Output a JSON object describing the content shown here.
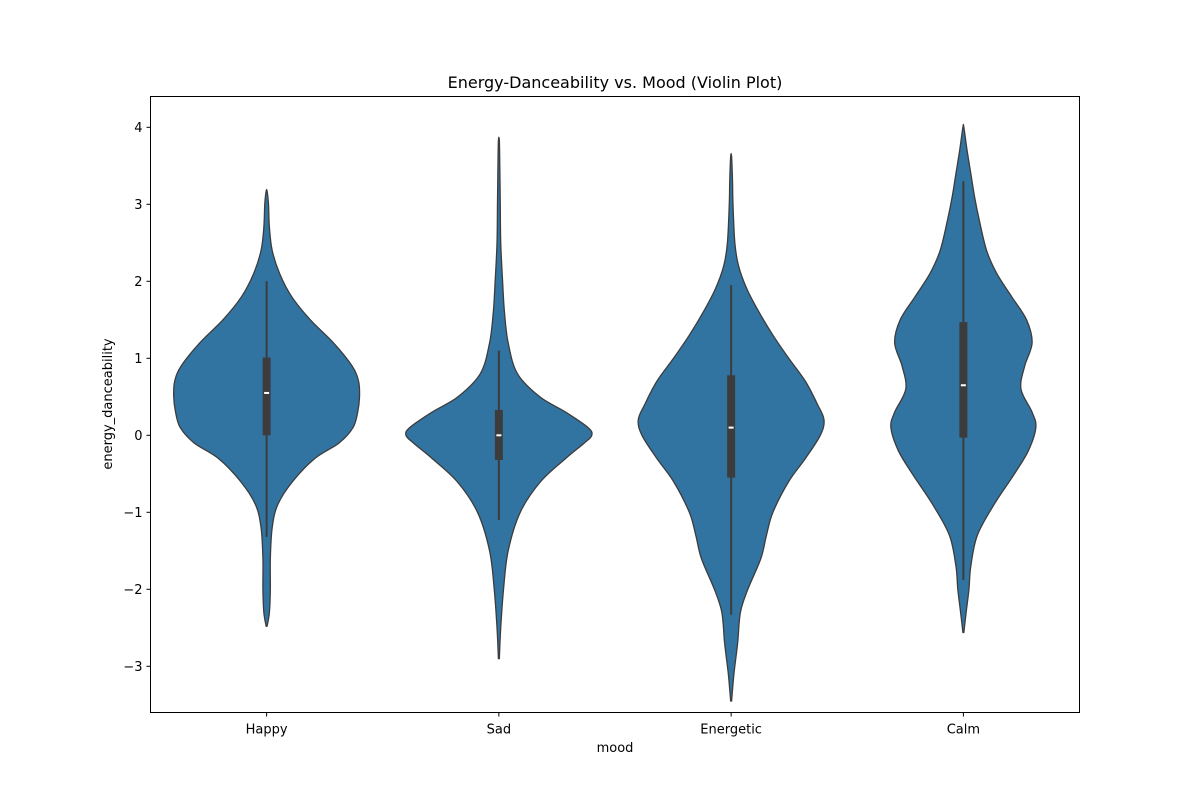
{
  "chart_data": {
    "type": "violin",
    "title": "Energy-Danceability vs. Mood (Violin Plot)",
    "xlabel": "mood",
    "ylabel": "energy_danceability",
    "ylim": [
      -3.6,
      4.4
    ],
    "yticks": [
      4,
      3,
      2,
      1,
      0,
      -1,
      -2,
      -3
    ],
    "ytick_labels": [
      "4",
      "3",
      "2",
      "1",
      "0",
      "−1",
      "−2",
      "−3"
    ],
    "categories": [
      "Happy",
      "Sad",
      "Energetic",
      "Calm"
    ],
    "grid": false,
    "legend": "none",
    "violin_color": "#3274a1",
    "outline_color": "#3c3c3c",
    "box_color": "#3c3c3c",
    "median_color": "#ffffff",
    "violins": [
      {
        "category": "Happy",
        "min": -2.48,
        "max": 3.17,
        "q1": 0.0,
        "median": 0.55,
        "q3": 1.01,
        "whisker_low": -1.32,
        "whisker_high": 2.0,
        "density": [
          [
            -2.48,
            0.005
          ],
          [
            -2.3,
            0.03
          ],
          [
            -2.0,
            0.04
          ],
          [
            -1.6,
            0.04
          ],
          [
            -1.2,
            0.06
          ],
          [
            -0.9,
            0.12
          ],
          [
            -0.6,
            0.28
          ],
          [
            -0.3,
            0.52
          ],
          [
            -0.1,
            0.78
          ],
          [
            0.1,
            0.93
          ],
          [
            0.3,
            0.98
          ],
          [
            0.5,
            1.0
          ],
          [
            0.7,
            0.99
          ],
          [
            0.9,
            0.92
          ],
          [
            1.2,
            0.72
          ],
          [
            1.5,
            0.47
          ],
          [
            1.8,
            0.27
          ],
          [
            2.1,
            0.14
          ],
          [
            2.4,
            0.06
          ],
          [
            2.7,
            0.03
          ],
          [
            3.0,
            0.02
          ],
          [
            3.17,
            0.005
          ]
        ]
      },
      {
        "category": "Sad",
        "min": -2.9,
        "max": 3.83,
        "q1": -0.32,
        "median": 0.0,
        "q3": 0.33,
        "whisker_low": -1.1,
        "whisker_high": 1.1,
        "density": [
          [
            -2.9,
            0.005
          ],
          [
            -2.5,
            0.02
          ],
          [
            -2.0,
            0.05
          ],
          [
            -1.5,
            0.1
          ],
          [
            -1.0,
            0.23
          ],
          [
            -0.6,
            0.45
          ],
          [
            -0.3,
            0.72
          ],
          [
            -0.1,
            0.92
          ],
          [
            0.0,
            1.0
          ],
          [
            0.1,
            0.96
          ],
          [
            0.3,
            0.72
          ],
          [
            0.5,
            0.44
          ],
          [
            0.8,
            0.2
          ],
          [
            1.2,
            0.1
          ],
          [
            1.6,
            0.06
          ],
          [
            2.0,
            0.04
          ],
          [
            2.5,
            0.02
          ],
          [
            3.0,
            0.015
          ],
          [
            3.5,
            0.01
          ],
          [
            3.83,
            0.005
          ]
        ]
      },
      {
        "category": "Energetic",
        "min": -3.45,
        "max": 3.62,
        "q1": -0.55,
        "median": 0.1,
        "q3": 0.78,
        "whisker_low": -2.33,
        "whisker_high": 1.95,
        "density": [
          [
            -3.45,
            0.005
          ],
          [
            -3.1,
            0.03
          ],
          [
            -2.7,
            0.07
          ],
          [
            -2.3,
            0.1
          ],
          [
            -2.0,
            0.18
          ],
          [
            -1.6,
            0.32
          ],
          [
            -1.3,
            0.38
          ],
          [
            -1.0,
            0.45
          ],
          [
            -0.6,
            0.62
          ],
          [
            -0.3,
            0.8
          ],
          [
            0.0,
            0.96
          ],
          [
            0.2,
            1.0
          ],
          [
            0.4,
            0.93
          ],
          [
            0.7,
            0.8
          ],
          [
            1.0,
            0.62
          ],
          [
            1.3,
            0.45
          ],
          [
            1.6,
            0.3
          ],
          [
            1.9,
            0.17
          ],
          [
            2.2,
            0.08
          ],
          [
            2.5,
            0.04
          ],
          [
            3.0,
            0.02
          ],
          [
            3.3,
            0.015
          ],
          [
            3.62,
            0.005
          ]
        ]
      },
      {
        "category": "Calm",
        "min": -2.56,
        "max": 4.0,
        "q1": -0.03,
        "median": 0.65,
        "q3": 1.47,
        "whisker_low": -1.88,
        "whisker_high": 3.3,
        "density": [
          [
            -2.56,
            0.005
          ],
          [
            -2.3,
            0.03
          ],
          [
            -2.0,
            0.06
          ],
          [
            -1.7,
            0.08
          ],
          [
            -1.3,
            0.15
          ],
          [
            -0.9,
            0.33
          ],
          [
            -0.5,
            0.55
          ],
          [
            -0.2,
            0.7
          ],
          [
            0.1,
            0.78
          ],
          [
            0.3,
            0.74
          ],
          [
            0.6,
            0.62
          ],
          [
            0.9,
            0.66
          ],
          [
            1.2,
            0.74
          ],
          [
            1.5,
            0.68
          ],
          [
            1.8,
            0.52
          ],
          [
            2.1,
            0.36
          ],
          [
            2.4,
            0.25
          ],
          [
            2.8,
            0.17
          ],
          [
            3.1,
            0.12
          ],
          [
            3.4,
            0.08
          ],
          [
            3.7,
            0.04
          ],
          [
            4.0,
            0.005
          ]
        ]
      }
    ]
  }
}
